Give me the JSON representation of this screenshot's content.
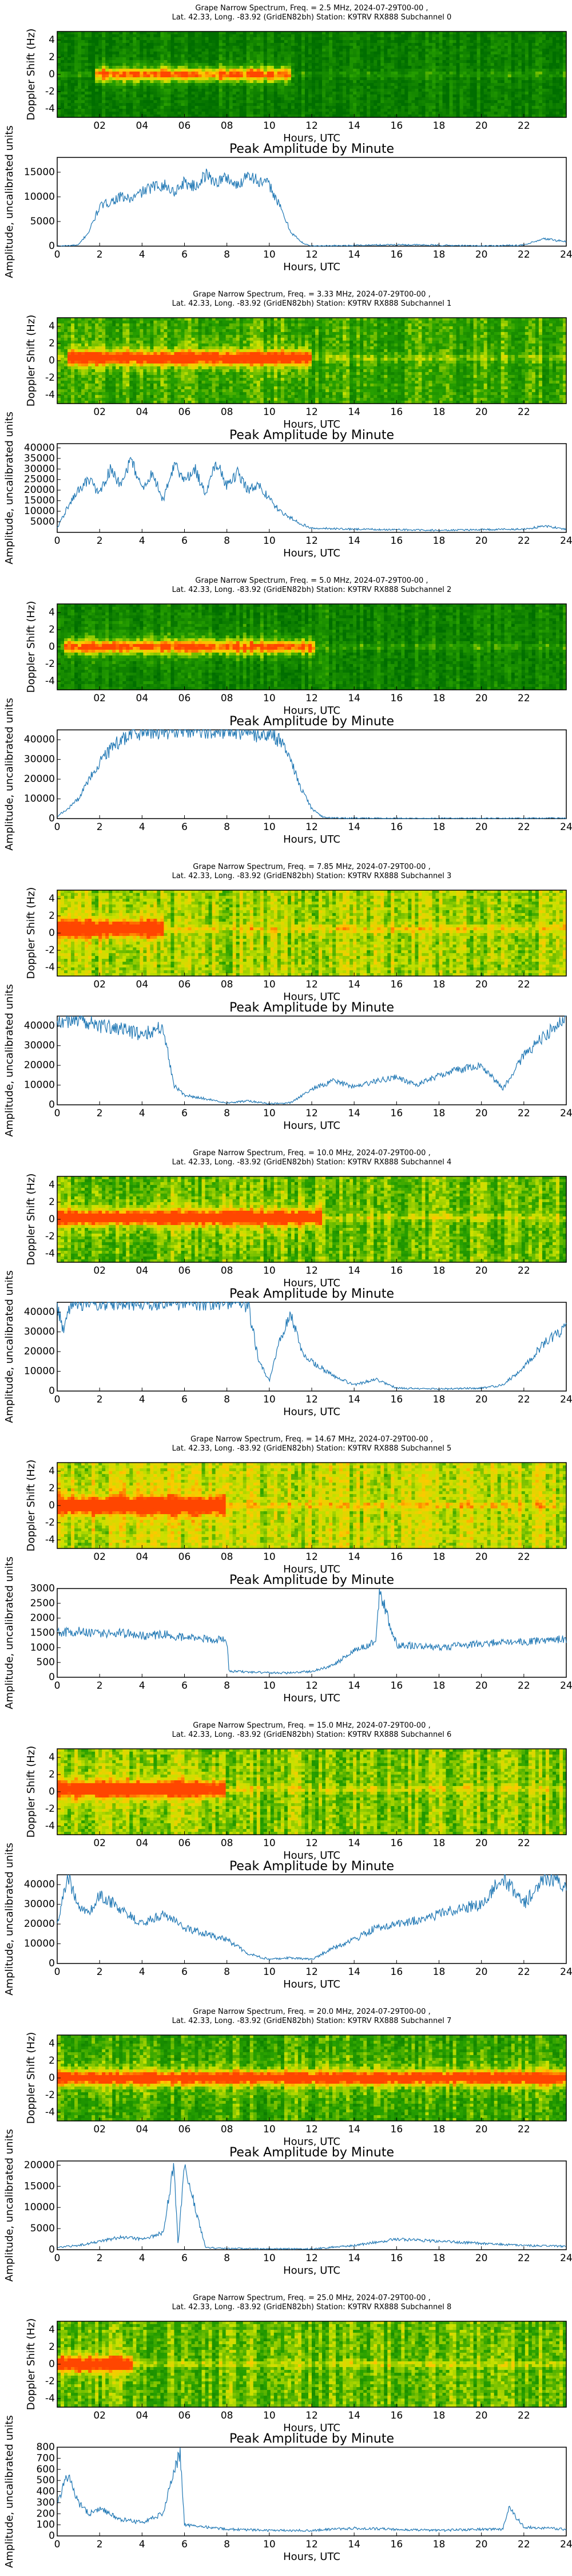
{
  "figure": {
    "station": "K9TRV RX888",
    "date": "2024-07-29"
  },
  "colors": {
    "spec_low": "#118a00",
    "spec_mid": "#d8e000",
    "spec_high": "#ff6a00",
    "line": "#1f77b4"
  },
  "chart_data": [
    {
      "type": "heatmap",
      "band": 0,
      "title1": "Grape Narrow Spectrum, Freq. = 2.5 MHz, 2024-07-29T00-00 ,",
      "title2": "Lat.  42.33, Long. -83.92 (GridEN82bh) Station: K9TRV RX888 Subchannel 0",
      "xlabel": "Hours, UTC",
      "ylabel": "Doppler Shift (Hz)",
      "xlim": [
        0,
        24
      ],
      "ylim": [
        -5,
        5
      ],
      "xticks": [
        "02",
        "04",
        "06",
        "08",
        "10",
        "12",
        "14",
        "16",
        "18",
        "20",
        "22"
      ],
      "yticks": [
        "-4",
        "-2",
        "0",
        "2",
        "4"
      ],
      "trace_hours": [
        1.8,
        11.0
      ],
      "trace_offset_hz": 0.0,
      "noise_floor": 0.1
    },
    {
      "type": "line",
      "band": 0,
      "title": "Peak Amplitude by Minute",
      "xlabel": "Hours, UTC",
      "ylabel": "Amplitude, uncalibrated units",
      "xlim": [
        0,
        24
      ],
      "ylim": [
        0,
        18000
      ],
      "yticks": [
        0,
        5000,
        10000,
        15000
      ],
      "xticks": [
        0,
        2,
        4,
        6,
        8,
        10,
        12,
        14,
        16,
        18,
        20,
        22,
        24
      ],
      "x": [
        0,
        1,
        1.5,
        2,
        2.5,
        3,
        3.5,
        4,
        4.5,
        5,
        5.5,
        6,
        6.5,
        7,
        7.5,
        8,
        8.5,
        9,
        9.5,
        10,
        10.5,
        11,
        11.5,
        12,
        16,
        20,
        22,
        23,
        24
      ],
      "values": [
        0,
        200,
        3000,
        8000,
        9000,
        10000,
        9500,
        11000,
        12000,
        12500,
        11000,
        13000,
        12000,
        14500,
        13000,
        14000,
        12000,
        15000,
        13000,
        12500,
        8000,
        3000,
        800,
        0,
        300,
        50,
        200,
        1500,
        900
      ]
    },
    {
      "type": "heatmap",
      "band": 1,
      "title1": "Grape Narrow Spectrum, Freq. = 3.33 MHz, 2024-07-29T00-00 ,",
      "title2": "Lat.  42.33, Long. -83.92 (GridEN82bh) Station: K9TRV RX888 Subchannel 1",
      "xlabel": "Hours, UTC",
      "ylabel": "Doppler Shift (Hz)",
      "xlim": [
        0,
        24
      ],
      "ylim": [
        -5,
        5
      ],
      "xticks": [
        "02",
        "04",
        "06",
        "08",
        "10",
        "12",
        "14",
        "16",
        "18",
        "20",
        "22"
      ],
      "yticks": [
        "-4",
        "-2",
        "0",
        "2",
        "4"
      ],
      "trace_hours": [
        0.5,
        12.0
      ],
      "trace_offset_hz": 0.3,
      "noise_floor": 0.35
    },
    {
      "type": "line",
      "band": 1,
      "title": "Peak Amplitude by Minute",
      "xlabel": "Hours, UTC",
      "ylabel": "Amplitude, uncalibrated units",
      "xlim": [
        0,
        24
      ],
      "ylim": [
        0,
        42000
      ],
      "yticks": [
        5000,
        10000,
        15000,
        20000,
        25000,
        30000,
        35000,
        40000
      ],
      "xticks": [
        0,
        2,
        4,
        6,
        8,
        10,
        12,
        14,
        16,
        18,
        20,
        22,
        24
      ],
      "x": [
        0,
        0.5,
        1,
        1.5,
        2,
        2.5,
        3,
        3.5,
        4,
        4.5,
        5,
        5.5,
        6,
        6.5,
        7,
        7.5,
        8,
        8.5,
        9,
        9.5,
        10,
        10.5,
        11,
        11.5,
        12,
        14,
        18,
        22,
        23,
        24
      ],
      "values": [
        2000,
        12000,
        20000,
        25000,
        18000,
        30000,
        22000,
        35000,
        20000,
        28000,
        15000,
        32000,
        25000,
        30000,
        18000,
        33000,
        22000,
        28000,
        20000,
        22000,
        16000,
        10000,
        7000,
        4000,
        2000,
        1500,
        1000,
        1500,
        3000,
        1500
      ]
    },
    {
      "type": "heatmap",
      "band": 2,
      "title1": "Grape Narrow Spectrum, Freq. = 5.0 MHz, 2024-07-29T00-00 ,",
      "title2": "Lat.  42.33, Long. -83.92 (GridEN82bh) Station: K9TRV RX888 Subchannel 2",
      "xlabel": "Hours, UTC",
      "ylabel": "Doppler Shift (Hz)",
      "xlim": [
        0,
        24
      ],
      "ylim": [
        -5,
        5
      ],
      "xticks": [
        "02",
        "04",
        "06",
        "08",
        "10",
        "12",
        "14",
        "16",
        "18",
        "20",
        "22"
      ],
      "yticks": [
        "-4",
        "-2",
        "0",
        "2",
        "4"
      ],
      "trace_hours": [
        0.3,
        12.2
      ],
      "trace_offset_hz": 0.0,
      "noise_floor": 0.15
    },
    {
      "type": "line",
      "band": 2,
      "title": "Peak Amplitude by Minute",
      "xlabel": "Hours, UTC",
      "ylabel": "Amplitude, uncalibrated units",
      "xlim": [
        0,
        24
      ],
      "ylim": [
        0,
        45000
      ],
      "yticks": [
        0,
        10000,
        20000,
        30000,
        40000
      ],
      "xticks": [
        0,
        2,
        4,
        6,
        8,
        10,
        12,
        14,
        16,
        18,
        20,
        22,
        24
      ],
      "x": [
        0,
        0.5,
        1,
        1.5,
        2,
        2.5,
        3,
        3.5,
        4,
        5,
        6,
        7,
        8,
        9,
        10,
        10.5,
        11,
        11.5,
        12,
        12.5,
        13,
        16,
        20,
        24
      ],
      "values": [
        1000,
        5000,
        10000,
        20000,
        28000,
        35000,
        40000,
        43000,
        44000,
        44000,
        45000,
        44000,
        45000,
        43000,
        42000,
        40000,
        30000,
        15000,
        5000,
        1000,
        300,
        100,
        100,
        200
      ]
    },
    {
      "type": "heatmap",
      "band": 3,
      "title1": "Grape Narrow Spectrum, Freq. = 7.85 MHz, 2024-07-29T00-00 ,",
      "title2": "Lat.  42.33, Long. -83.92 (GridEN82bh) Station: K9TRV RX888 Subchannel 3",
      "xlabel": "Hours, UTC",
      "ylabel": "Doppler Shift (Hz)",
      "xlim": [
        0,
        24
      ],
      "ylim": [
        -5,
        5
      ],
      "xticks": [
        "02",
        "04",
        "06",
        "08",
        "10",
        "12",
        "14",
        "16",
        "18",
        "20",
        "22"
      ],
      "yticks": [
        "-4",
        "-2",
        "0",
        "2",
        "4"
      ],
      "trace_hours": [
        0.0,
        5.0
      ],
      "trace_offset_hz": 0.5,
      "noise_floor": 0.55
    },
    {
      "type": "line",
      "band": 3,
      "title": "Peak Amplitude by Minute",
      "xlabel": "Hours, UTC",
      "ylabel": "Amplitude, uncalibrated units",
      "xlim": [
        0,
        24
      ],
      "ylim": [
        0,
        45000
      ],
      "yticks": [
        0,
        10000,
        20000,
        30000,
        40000
      ],
      "xticks": [
        0,
        2,
        4,
        6,
        8,
        10,
        12,
        14,
        16,
        18,
        20,
        22,
        24
      ],
      "x": [
        0,
        1,
        2,
        3,
        4,
        5,
        5.5,
        6,
        7,
        8,
        9,
        10,
        11,
        12,
        13,
        14,
        15,
        16,
        17,
        18,
        19,
        20,
        21,
        22,
        23,
        24
      ],
      "values": [
        42000,
        44000,
        40000,
        38000,
        36000,
        40000,
        10000,
        5000,
        3000,
        1000,
        2000,
        500,
        1000,
        8000,
        12000,
        9000,
        12000,
        14000,
        10000,
        15000,
        18000,
        20000,
        8000,
        25000,
        35000,
        44000
      ]
    },
    {
      "type": "heatmap",
      "band": 4,
      "title1": "Grape Narrow Spectrum, Freq. = 10.0 MHz, 2024-07-29T00-00 ,",
      "title2": "Lat.  42.33, Long. -83.92 (GridEN82bh) Station: K9TRV RX888 Subchannel 4",
      "xlabel": "Hours, UTC",
      "ylabel": "Doppler Shift (Hz)",
      "xlim": [
        0,
        24
      ],
      "ylim": [
        -5,
        5
      ],
      "xticks": [
        "02",
        "04",
        "06",
        "08",
        "10",
        "12",
        "14",
        "16",
        "18",
        "20",
        "22"
      ],
      "yticks": [
        "-4",
        "-2",
        "0",
        "2",
        "4"
      ],
      "trace_hours": [
        0.0,
        12.5
      ],
      "trace_offset_hz": 0.2,
      "noise_floor": 0.45
    },
    {
      "type": "line",
      "band": 4,
      "title": "Peak Amplitude by Minute",
      "xlabel": "Hours, UTC",
      "ylabel": "Amplitude, uncalibrated units",
      "xlim": [
        0,
        24
      ],
      "ylim": [
        0,
        45000
      ],
      "yticks": [
        0,
        10000,
        20000,
        30000,
        40000
      ],
      "xticks": [
        0,
        2,
        4,
        6,
        8,
        10,
        12,
        14,
        16,
        18,
        20,
        22,
        24
      ],
      "x": [
        0,
        0.3,
        0.6,
        1,
        1.5,
        2,
        3,
        4,
        5,
        6,
        7,
        8,
        9,
        9.5,
        10,
        10.5,
        11,
        11.5,
        12,
        13,
        14,
        15,
        16,
        18,
        20,
        21,
        22,
        23,
        24
      ],
      "values": [
        44000,
        30000,
        44000,
        45000,
        45000,
        45000,
        45000,
        45000,
        45000,
        45000,
        45000,
        45000,
        44000,
        15000,
        5000,
        25000,
        40000,
        20000,
        15000,
        8000,
        3000,
        6000,
        1500,
        1000,
        1500,
        3000,
        12000,
        25000,
        32000
      ]
    },
    {
      "type": "heatmap",
      "band": 5,
      "title1": "Grape Narrow Spectrum, Freq. = 14.67 MHz, 2024-07-29T00-00 ,",
      "title2": "Lat.  42.33, Long. -83.92 (GridEN82bh) Station: K9TRV RX888 Subchannel 5",
      "xlabel": "Hours, UTC",
      "ylabel": "Doppler Shift (Hz)",
      "xlim": [
        0,
        24
      ],
      "ylim": [
        -5,
        5
      ],
      "xticks": [
        "02",
        "04",
        "06",
        "08",
        "10",
        "12",
        "14",
        "16",
        "18",
        "20",
        "22"
      ],
      "yticks": [
        "-4",
        "-2",
        "0",
        "2",
        "4"
      ],
      "trace_hours": [
        0.0,
        8.0
      ],
      "trace_offset_hz": 0.0,
      "noise_floor": 0.6
    },
    {
      "type": "line",
      "band": 5,
      "title": "Peak Amplitude by Minute",
      "xlabel": "Hours, UTC",
      "ylabel": "Amplitude, uncalibrated units",
      "xlim": [
        0,
        24
      ],
      "ylim": [
        0,
        3000
      ],
      "yticks": [
        0,
        500,
        1000,
        1500,
        2000,
        2500,
        3000
      ],
      "xticks": [
        0,
        2,
        4,
        6,
        8,
        10,
        12,
        14,
        16,
        18,
        20,
        22,
        24
      ],
      "x": [
        0,
        1,
        2,
        3,
        4,
        5,
        6,
        7,
        8,
        8.1,
        9,
        10,
        11,
        12,
        13,
        14,
        15,
        15.2,
        16,
        18,
        20,
        22,
        24
      ],
      "values": [
        1500,
        1550,
        1450,
        1500,
        1400,
        1450,
        1350,
        1300,
        1250,
        200,
        180,
        150,
        150,
        200,
        400,
        900,
        1200,
        2900,
        1100,
        1000,
        1150,
        1200,
        1300
      ]
    },
    {
      "type": "heatmap",
      "band": 6,
      "title1": "Grape Narrow Spectrum, Freq. = 15.0 MHz, 2024-07-29T00-00 ,",
      "title2": "Lat.  42.33, Long. -83.92 (GridEN82bh) Station: K9TRV RX888 Subchannel 6",
      "xlabel": "Hours, UTC",
      "ylabel": "Doppler Shift (Hz)",
      "xlim": [
        0,
        24
      ],
      "ylim": [
        -5,
        5
      ],
      "xticks": [
        "02",
        "04",
        "06",
        "08",
        "10",
        "12",
        "14",
        "16",
        "18",
        "20",
        "22"
      ],
      "yticks": [
        "-4",
        "-2",
        "0",
        "2",
        "4"
      ],
      "trace_hours": [
        0.0,
        8.0
      ],
      "trace_offset_hz": 0.3,
      "noise_floor": 0.5
    },
    {
      "type": "line",
      "band": 6,
      "title": "Peak Amplitude by Minute",
      "xlabel": "Hours, UTC",
      "ylabel": "Amplitude, uncalibrated units",
      "xlim": [
        0,
        24
      ],
      "ylim": [
        0,
        45000
      ],
      "yticks": [
        0,
        10000,
        20000,
        30000,
        40000
      ],
      "xticks": [
        0,
        2,
        4,
        6,
        8,
        10,
        12,
        14,
        16,
        18,
        20,
        22,
        24
      ],
      "x": [
        0,
        0.5,
        1,
        1.5,
        2,
        3,
        4,
        5,
        6,
        7,
        8,
        9,
        10,
        11,
        12,
        13,
        14,
        15,
        16,
        17,
        18,
        19,
        20,
        21,
        22,
        23,
        24
      ],
      "values": [
        20000,
        44000,
        30000,
        25000,
        35000,
        28000,
        20000,
        25000,
        18000,
        15000,
        12000,
        5000,
        2000,
        3000,
        2000,
        8000,
        12000,
        18000,
        20000,
        22000,
        25000,
        28000,
        30000,
        44000,
        30000,
        44000,
        40000
      ]
    },
    {
      "type": "heatmap",
      "band": 7,
      "title1": "Grape Narrow Spectrum, Freq. = 20.0 MHz, 2024-07-29T00-00 ,",
      "title2": "Lat.  42.33, Long. -83.92 (GridEN82bh) Station: K9TRV RX888 Subchannel 7",
      "xlabel": "Hours, UTC",
      "ylabel": "Doppler Shift (Hz)",
      "xlim": [
        0,
        24
      ],
      "ylim": [
        -5,
        5
      ],
      "xticks": [
        "02",
        "04",
        "06",
        "08",
        "10",
        "12",
        "14",
        "16",
        "18",
        "20",
        "22"
      ],
      "yticks": [
        "-4",
        "-2",
        "0",
        "2",
        "4"
      ],
      "trace_hours": [
        0.0,
        24.0
      ],
      "trace_offset_hz": 0.0,
      "noise_floor": 0.35
    },
    {
      "type": "line",
      "band": 7,
      "title": "Peak Amplitude by Minute",
      "xlabel": "Hours, UTC",
      "ylabel": "Amplitude, uncalibrated units",
      "xlim": [
        0,
        24
      ],
      "ylim": [
        0,
        21000
      ],
      "yticks": [
        0,
        5000,
        10000,
        15000,
        20000
      ],
      "xticks": [
        0,
        2,
        4,
        6,
        8,
        10,
        12,
        14,
        16,
        18,
        20,
        22,
        24
      ],
      "x": [
        0,
        1,
        2,
        3,
        4,
        5,
        5.5,
        5.7,
        6,
        7,
        8,
        10,
        12,
        14,
        16,
        18,
        20,
        22,
        24
      ],
      "values": [
        500,
        1000,
        2000,
        3000,
        2500,
        4000,
        20000,
        1000,
        20000,
        500,
        300,
        200,
        200,
        1000,
        2500,
        2000,
        1500,
        1000,
        800
      ]
    },
    {
      "type": "heatmap",
      "band": 8,
      "title1": "Grape Narrow Spectrum, Freq. = 25.0 MHz, 2024-07-29T00-00 ,",
      "title2": "Lat.  42.33, Long. -83.92 (GridEN82bh) Station: K9TRV RX888 Subchannel 8",
      "xlabel": "Hours, UTC",
      "ylabel": "Doppler Shift (Hz)",
      "xlim": [
        0,
        24
      ],
      "ylim": [
        -5,
        5
      ],
      "xticks": [
        "02",
        "04",
        "06",
        "08",
        "10",
        "12",
        "14",
        "16",
        "18",
        "20",
        "22"
      ],
      "yticks": [
        "-4",
        "-2",
        "0",
        "2",
        "4"
      ],
      "trace_hours": [
        0.0,
        3.5
      ],
      "trace_offset_hz": 0.0,
      "noise_floor": 0.45
    },
    {
      "type": "line",
      "band": 8,
      "title": "Peak Amplitude by Minute",
      "xlabel": "Hours, UTC",
      "ylabel": "Amplitude, uncalibrated units",
      "xlim": [
        0,
        24
      ],
      "ylim": [
        0,
        800
      ],
      "yticks": [
        0,
        100,
        200,
        300,
        400,
        500,
        600,
        700,
        800
      ],
      "xticks": [
        0,
        2,
        4,
        6,
        8,
        10,
        12,
        14,
        16,
        18,
        20,
        22,
        24
      ],
      "x": [
        0,
        0.5,
        1,
        1.5,
        2,
        3,
        4,
        5,
        5.5,
        5.8,
        6,
        7,
        8,
        10,
        12,
        14,
        16,
        18,
        20,
        21,
        21.3,
        22,
        24
      ],
      "values": [
        300,
        550,
        300,
        200,
        250,
        150,
        120,
        200,
        600,
        750,
        100,
        80,
        60,
        50,
        50,
        70,
        60,
        50,
        60,
        60,
        250,
        80,
        60
      ]
    }
  ]
}
